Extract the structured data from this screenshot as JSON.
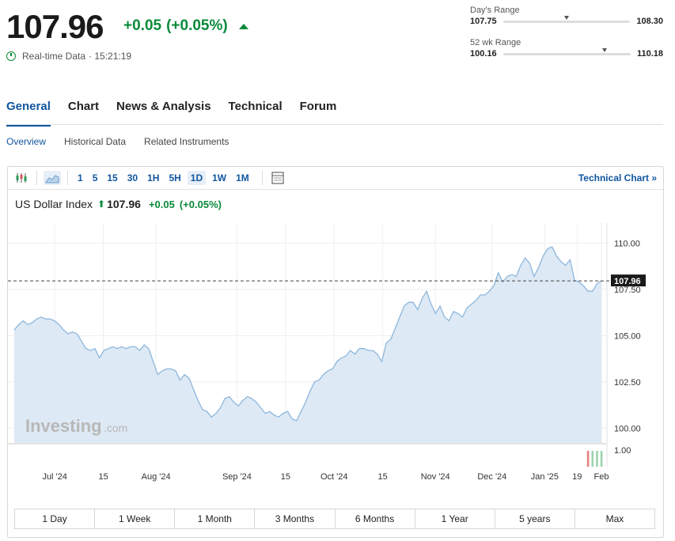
{
  "quote": {
    "price": "107.96",
    "change": "+0.05",
    "change_pct": "(+0.05%)",
    "realtime_label": "Real-time Data",
    "time": "· 15:21:19"
  },
  "days_range": {
    "label": "Day's Range",
    "low": "107.75",
    "high": "108.30",
    "position": 0.48
  },
  "wk52_range": {
    "label": "52 wk Range",
    "low": "100.16",
    "high": "110.18",
    "position": 0.78
  },
  "tabs": [
    "General",
    "Chart",
    "News & Analysis",
    "Technical",
    "Forum"
  ],
  "subtabs": [
    "Overview",
    "Historical Data",
    "Related Instruments"
  ],
  "toolbar": {
    "intervals": [
      "1",
      "5",
      "15",
      "30",
      "1H",
      "5H",
      "1D",
      "1W",
      "1M"
    ],
    "active_interval": "1D",
    "technical_chart": "Technical Chart »"
  },
  "chart_header": {
    "name": "US Dollar Index",
    "arrow": "⬆",
    "value": "107.96",
    "change": "+0.05",
    "change_pct": "(+0.05%)"
  },
  "watermark": {
    "brand": "Investing",
    "suffix": ".com"
  },
  "chart_data": {
    "type": "area",
    "series": [
      {
        "values": [
          105.3,
          105.6,
          105.8,
          105.6,
          105.7,
          105.9,
          106.0,
          105.9,
          105.9,
          105.8,
          105.6,
          105.3,
          105.1,
          105.2,
          105.1,
          104.7,
          104.3,
          104.2,
          104.3,
          103.8,
          104.2,
          104.3,
          104.4,
          104.3,
          104.4,
          104.3,
          104.4,
          104.4,
          104.2,
          104.5,
          104.3,
          103.6,
          102.9,
          103.1,
          103.2,
          103.2,
          103.1,
          102.6,
          102.9,
          102.7,
          102.1,
          101.5,
          101.0,
          100.9,
          100.6,
          100.8,
          101.1,
          101.6,
          101.7,
          101.4,
          101.2,
          101.5,
          101.7,
          101.6,
          101.4,
          101.1,
          100.8,
          100.9,
          100.7,
          100.6,
          100.8,
          100.9,
          100.5,
          100.4,
          100.9,
          101.4,
          102.0,
          102.5,
          102.6,
          102.9,
          103.1,
          103.2,
          103.6,
          103.8,
          103.9,
          104.2,
          104.0,
          104.3,
          104.3,
          104.2,
          104.2,
          104.0,
          103.6,
          104.6,
          104.8,
          105.4,
          106.0,
          106.6,
          106.8,
          106.8,
          106.4,
          107.0,
          107.4,
          106.7,
          106.2,
          106.6,
          106.0,
          105.8,
          106.3,
          106.2,
          106.0,
          106.5,
          106.7,
          106.9,
          107.2,
          107.2,
          107.4,
          107.7,
          108.4,
          107.9,
          108.2,
          108.3,
          108.2,
          108.8,
          109.2,
          108.9,
          108.2,
          108.7,
          109.3,
          109.7,
          109.8,
          109.3,
          109.0,
          108.8,
          109.1,
          108.0,
          107.9,
          107.7,
          107.4,
          107.4,
          107.8,
          107.96
        ]
      }
    ],
    "x_tick_labels": [
      "Jul '24",
      "15",
      "Aug '24",
      "Sep '24",
      "15",
      "Oct '24",
      "15",
      "Nov '24",
      "Dec '24",
      "Jan '25",
      "19",
      "Feb"
    ],
    "y_tick_labels": [
      "110.00",
      "107.50",
      "105.00",
      "102.50",
      "100.00"
    ],
    "ylim": [
      99.2,
      111.0
    ],
    "last_value_label": "107.96",
    "volume_axis_label": "1.00",
    "colors": {
      "line": "#8db7dd",
      "fill": "#dde9f4",
      "up": "#9ed2b0",
      "down": "#e88080"
    }
  },
  "range_buttons": [
    "1 Day",
    "1 Week",
    "1 Month",
    "3 Months",
    "6 Months",
    "1 Year",
    "5 years",
    "Max"
  ]
}
